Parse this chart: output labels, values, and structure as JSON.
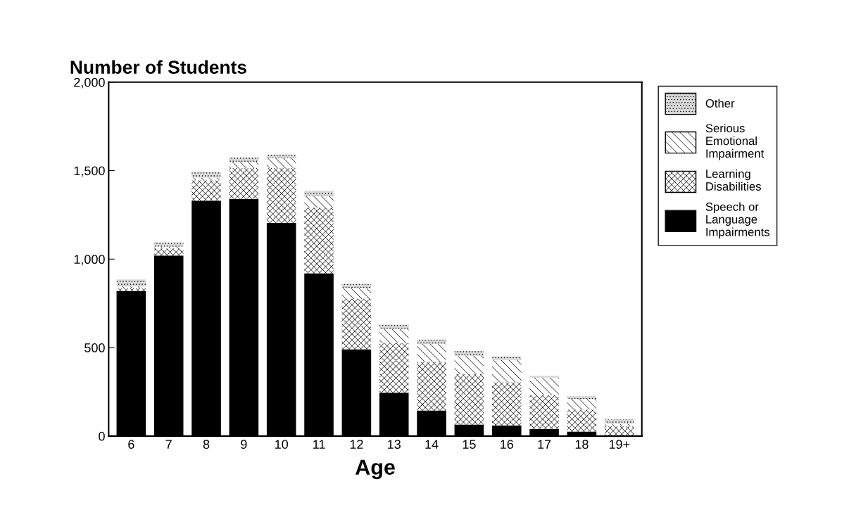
{
  "chart_data": {
    "type": "bar",
    "title": "Number of Students",
    "xlabel": "Age",
    "stacked": true,
    "categories": [
      "6",
      "7",
      "8",
      "9",
      "10",
      "11",
      "12",
      "13",
      "14",
      "15",
      "16",
      "17",
      "18",
      "19+"
    ],
    "series": [
      {
        "name": "Speech or\nLanguage\nImpairments",
        "color": "#000000",
        "values": [
          820,
          1020,
          1330,
          1340,
          1205,
          920,
          490,
          245,
          145,
          65,
          60,
          40,
          25,
          null
        ]
      },
      {
        "name": "Learning\nDisabilities",
        "color": "#ffffff",
        "values": [
          15,
          40,
          115,
          175,
          310,
          370,
          285,
          280,
          275,
          285,
          245,
          190,
          125,
          55
        ]
      },
      {
        "name": "Serious\nEmotional\nImpairment",
        "color": "#ffffff",
        "values": [
          10,
          10,
          15,
          35,
          55,
          65,
          60,
          80,
          100,
          105,
          125,
          100,
          60,
          15
        ]
      },
      {
        "name": "Other",
        "color": "#d9d9d9",
        "values": [
          40,
          25,
          30,
          25,
          20,
          30,
          25,
          25,
          25,
          25,
          20,
          10,
          15,
          25
        ]
      }
    ],
    "ylim": [
      0,
      2000
    ],
    "yticks": [
      0,
      500,
      {
        "value": 1000,
        "label": "1,000"
      },
      {
        "value": 1500,
        "label": "1,500"
      },
      {
        "value": 2000,
        "label": "2,000"
      }
    ],
    "grid": false,
    "legend": "right"
  }
}
